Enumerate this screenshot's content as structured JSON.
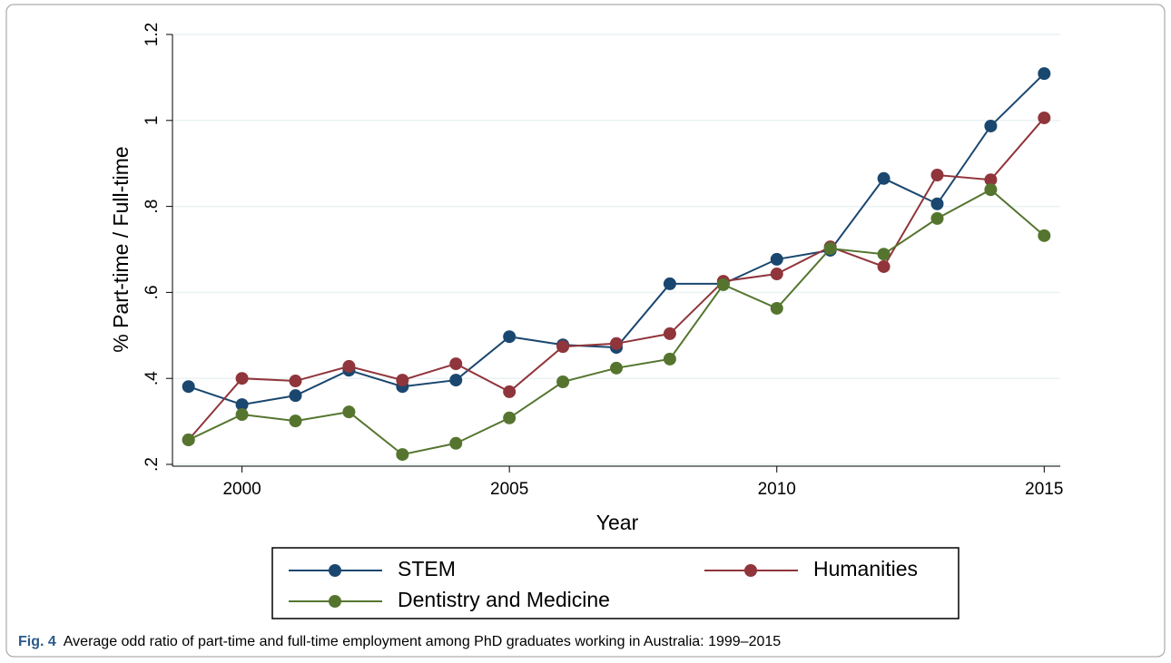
{
  "chart_data": {
    "type": "line",
    "y_label": "% Part-time / Full-time",
    "x_label": "Year",
    "x": [
      1999,
      2000,
      2001,
      2002,
      2003,
      2004,
      2005,
      2006,
      2007,
      2008,
      2009,
      2010,
      2011,
      2012,
      2013,
      2014,
      2015
    ],
    "series": [
      {
        "name": "STEM",
        "color": "#1a476f",
        "values": [
          0.381,
          0.339,
          0.36,
          0.419,
          0.381,
          0.396,
          0.497,
          0.478,
          0.472,
          0.62,
          0.62,
          0.677,
          0.698,
          0.865,
          0.806,
          0.987,
          1.109
        ]
      },
      {
        "name": "Humanities",
        "color": "#90353b",
        "values": [
          0.257,
          0.4,
          0.394,
          0.428,
          0.396,
          0.434,
          0.369,
          0.474,
          0.481,
          0.504,
          0.626,
          0.643,
          0.706,
          0.66,
          0.873,
          0.862,
          1.006
        ]
      },
      {
        "name": "Dentistry and Medicine",
        "color": "#55752f",
        "values": [
          0.257,
          0.316,
          0.301,
          0.322,
          0.223,
          0.249,
          0.308,
          0.392,
          0.424,
          0.445,
          0.618,
          0.563,
          0.702,
          0.689,
          0.772,
          0.839,
          0.732
        ]
      }
    ],
    "xlim": [
      1998.7,
      2015.3
    ],
    "xticks": [
      2000,
      2005,
      2010,
      2015
    ],
    "ylim": [
      0.2,
      1.2
    ],
    "yticks": [
      {
        "value": 0.2,
        "label": ".2"
      },
      {
        "value": 0.4,
        "label": ".4"
      },
      {
        "value": 0.6,
        "label": ".6"
      },
      {
        "value": 0.8,
        "label": ".8"
      },
      1,
      1.2
    ],
    "grid": true,
    "caption_label": "Fig. 4",
    "caption": "Average odd ratio of part-time and full-time employment among PhD graduates working in Australia: 1999–2015"
  }
}
